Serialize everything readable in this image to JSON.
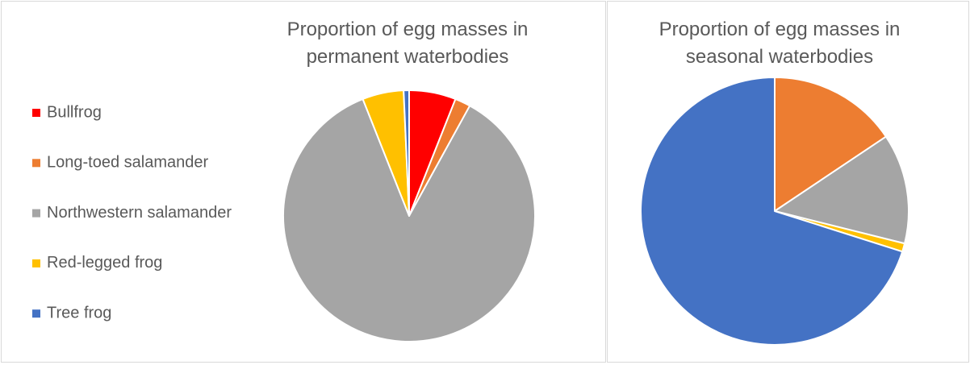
{
  "chart_data": {
    "type": "pie",
    "categories": [
      "Bullfrog",
      "Long-toed salamander",
      "Northwestern salamander",
      "Red-legged frog",
      "Tree frog"
    ],
    "colors": [
      "#ff0000",
      "#ed7d31",
      "#a5a5a5",
      "#ffc000",
      "#4472c4"
    ],
    "legend": "left",
    "series": [
      {
        "name": "Proportion of egg masses in permanent waterbodies",
        "values": [
          6,
          2,
          86,
          5.3,
          0.7
        ]
      },
      {
        "name": "Proportion of egg masses in seasonal waterbodies",
        "values": [
          0,
          15.6,
          13.3,
          1,
          70.1
        ]
      }
    ]
  }
}
